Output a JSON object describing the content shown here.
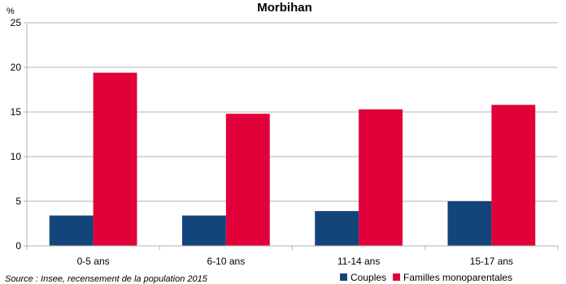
{
  "chart_data": {
    "type": "bar",
    "title": "Morbihan",
    "yunit": "%",
    "source": "Source : Insee, recensement de la population 2015",
    "categories": [
      "0-5 ans",
      "6-10 ans",
      "11-14 ans",
      "15-17 ans"
    ],
    "series": [
      {
        "name": "Couples",
        "color": "#13457a",
        "values": [
          3.4,
          3.4,
          3.9,
          5.0
        ]
      },
      {
        "name": "Familles monoparentales",
        "color": "#e2003a",
        "values": [
          19.4,
          14.8,
          15.3,
          15.8
        ]
      }
    ],
    "ylim": [
      0,
      25
    ],
    "yticks": [
      0,
      5,
      10,
      15,
      20,
      25
    ],
    "grid": true,
    "legend_position": "bottom-right"
  }
}
